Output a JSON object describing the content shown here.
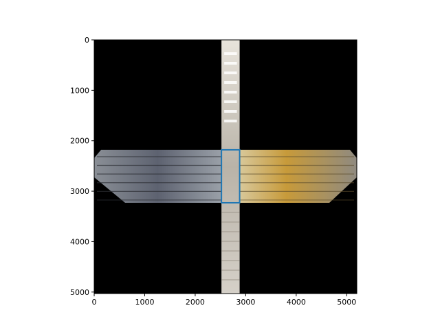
{
  "chart_data": {
    "type": "image",
    "title": "",
    "xlabel": "",
    "ylabel": "",
    "xlim": [
      0,
      5200
    ],
    "ylim": [
      5030,
      0
    ],
    "x_ticks": [
      0,
      1000,
      2000,
      3000,
      4000,
      5000
    ],
    "y_ticks": [
      0,
      1000,
      2000,
      3000,
      4000,
      5000
    ],
    "grid": false,
    "image_description": "panorama mosaic: vertical strip (ceiling-to-floor corridor) crossed by a horizontal strip of library bookshelves on black background",
    "vertical_strip": {
      "x0": 2520,
      "x1": 2880,
      "y0": 0,
      "y1": 5030
    },
    "horizontal_strip": {
      "x0": 0,
      "x1": 5200,
      "y0": 2180,
      "y1": 3230
    },
    "highlight_box": {
      "x0": 2520,
      "x1": 2880,
      "y0": 2180,
      "y1": 3230,
      "color": "#1f77b4"
    },
    "colors": {
      "background": "#000000",
      "shelf_left": "#6b6f7a",
      "shelf_right": "#c9a24a",
      "corridor": "#cfcac2"
    }
  }
}
